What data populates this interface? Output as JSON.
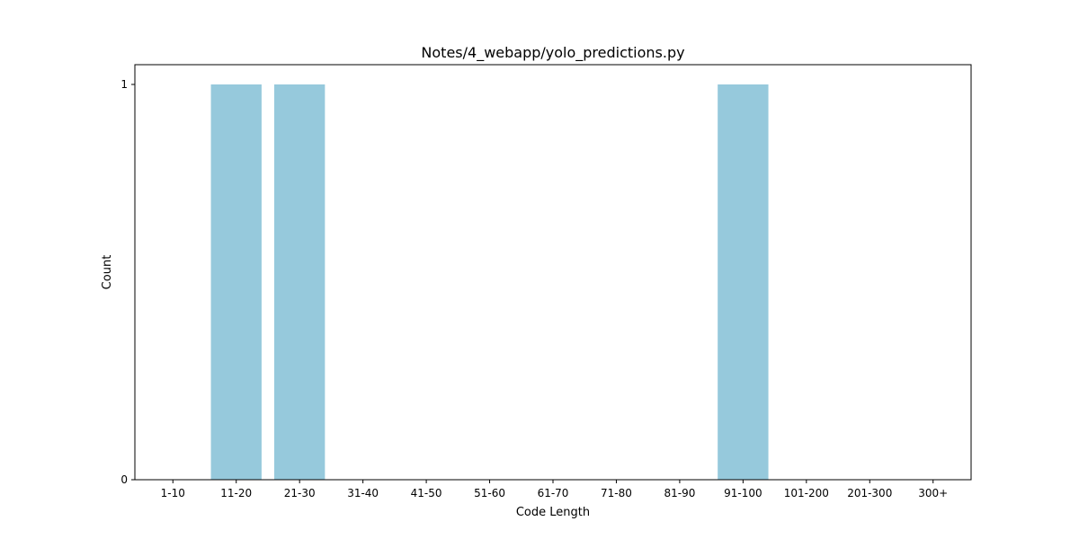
{
  "chart_data": {
    "type": "bar",
    "title": "Notes/4_webapp/yolo_predictions.py",
    "xlabel": "Code Length",
    "ylabel": "Count",
    "categories": [
      "1-10",
      "11-20",
      "21-30",
      "31-40",
      "41-50",
      "51-60",
      "61-70",
      "71-80",
      "81-90",
      "91-100",
      "101-200",
      "201-300",
      "300+"
    ],
    "values": [
      0,
      1,
      1,
      0,
      0,
      0,
      0,
      0,
      0,
      1,
      0,
      0,
      0
    ],
    "ylim": [
      0,
      1.05
    ],
    "yticks": [
      0,
      1
    ],
    "grid": false,
    "legend": "none",
    "colors": {
      "bar": "#96c9dc",
      "axis": "#000000",
      "background": "#ffffff"
    }
  }
}
